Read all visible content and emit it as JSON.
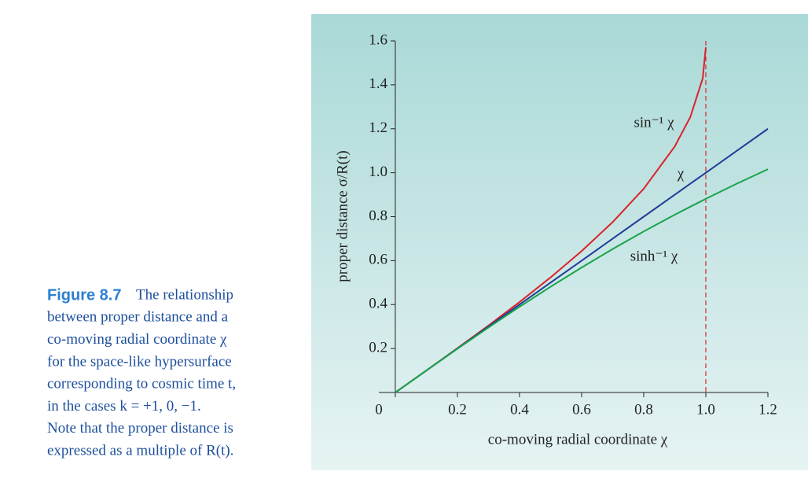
{
  "chart_data": {
    "type": "line",
    "caption_label": "Figure 8.7",
    "caption_lines": [
      "The relationship",
      "between proper distance and a",
      "co-moving radial coordinate χ",
      "for the space-like hypersurface",
      "corresponding to cosmic time t,",
      "in the cases k = +1, 0, −1.",
      "Note that the proper distance is",
      "expressed as a multiple of R(t)."
    ],
    "xlabel": "co-moving radial coordinate χ",
    "ylabel": "proper distance σ/R(t)",
    "x": [
      0,
      0.1,
      0.2,
      0.3,
      0.4,
      0.5,
      0.6,
      0.7,
      0.8,
      0.9,
      0.95,
      0.99,
      1.0,
      1.1,
      1.2
    ],
    "series": [
      {
        "name": "sin⁻¹ χ",
        "color": "#d9232a",
        "values": [
          0,
          0.1002,
          0.2014,
          0.3047,
          0.4115,
          0.5236,
          0.6435,
          0.7754,
          0.9273,
          1.1198,
          1.2532,
          1.4293,
          1.5708,
          null,
          null
        ]
      },
      {
        "name": "χ",
        "color": "#1f3c99",
        "values": [
          0,
          0.1,
          0.2,
          0.3,
          0.4,
          0.5,
          0.6,
          0.7,
          0.8,
          0.9,
          0.95,
          0.99,
          1.0,
          1.1,
          1.2
        ]
      },
      {
        "name": "sinh⁻¹ χ",
        "color": "#1aa34a",
        "values": [
          0,
          0.0998,
          0.1987,
          0.2957,
          0.39,
          0.4812,
          0.5688,
          0.6527,
          0.7327,
          0.8089,
          0.8454,
          0.8741,
          0.8814,
          0.9503,
          1.016
        ]
      }
    ],
    "reference_x": 1,
    "reference_color": "#d9232a",
    "xlim": [
      -0.053,
      1.2
    ],
    "ylim": [
      0,
      1.6
    ],
    "xticks": [
      0,
      0.2,
      0.4,
      0.6,
      0.8,
      {
        "value": 1,
        "label": "1.0"
      },
      1.2
    ],
    "yticks": [
      0.2,
      0.4,
      0.6,
      0.8,
      {
        "value": 1,
        "label": "1.0"
      },
      1.2,
      1.4,
      1.6
    ]
  }
}
